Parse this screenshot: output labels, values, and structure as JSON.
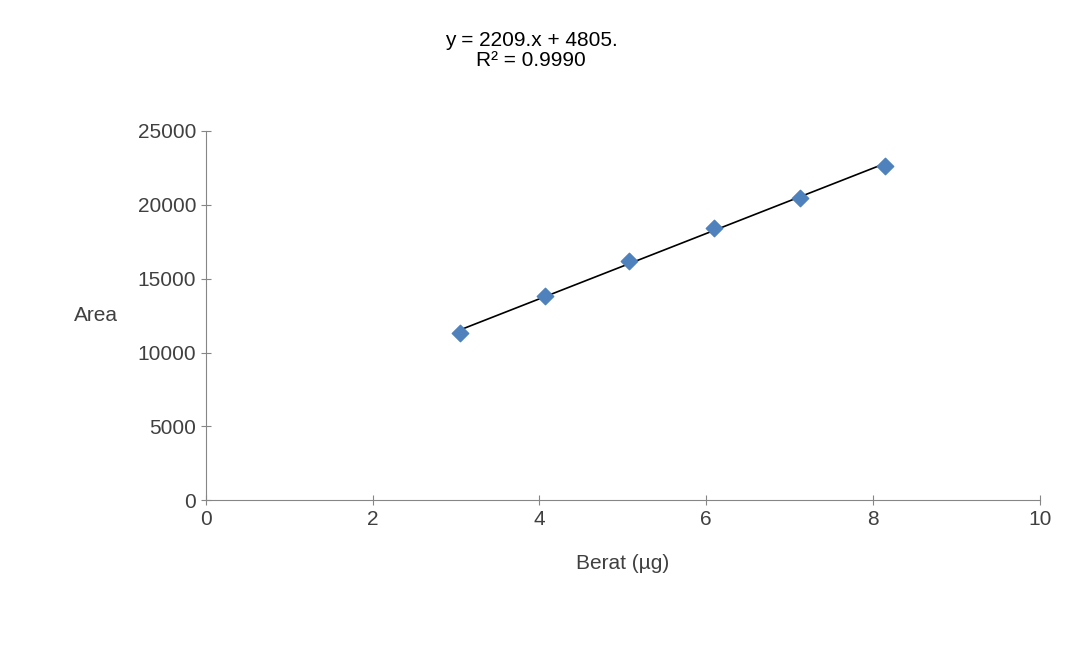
{
  "chart_data": {
    "type": "scatter",
    "x_label": "Berat (µg)",
    "y_label": "Area",
    "annotations": [
      "y = 2209.x + 4805.",
      "R² = 0.9990"
    ],
    "x": [
      3.05,
      4.07,
      5.08,
      6.1,
      7.12,
      8.14
    ],
    "values": [
      11350,
      13800,
      16200,
      18450,
      20450,
      22650
    ],
    "color": "#4f81bd",
    "marker": "diamond",
    "xlim": [
      0,
      10
    ],
    "xticks": [
      0,
      2,
      4,
      6,
      8,
      10
    ],
    "ylim": [
      0,
      25000
    ],
    "yticks": [
      0,
      5000,
      10000,
      15000,
      20000,
      25000
    ],
    "grid": false
  }
}
